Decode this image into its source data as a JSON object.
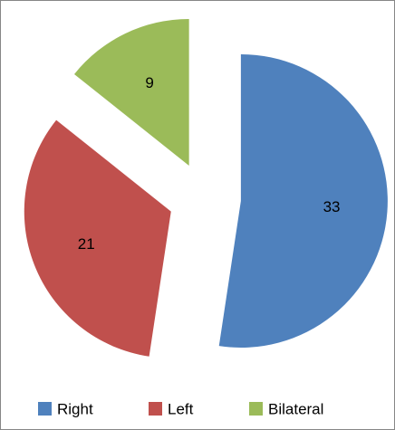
{
  "chart_data": {
    "type": "pie",
    "categories": [
      "Right",
      "Left",
      "Bilateral"
    ],
    "values": [
      33,
      21,
      9
    ],
    "colors": [
      "#4f81bd",
      "#c0504d",
      "#9bbb59"
    ],
    "legend": "bottom"
  }
}
